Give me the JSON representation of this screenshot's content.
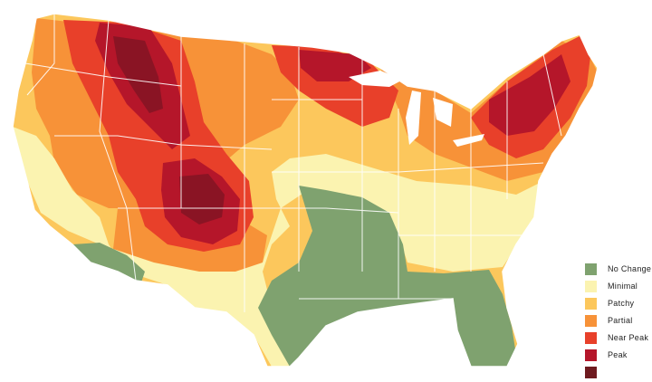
{
  "legend": {
    "items": [
      {
        "label": "No Change",
        "color": "#7fa26f"
      },
      {
        "label": "Minimal",
        "color": "#fbf3b0"
      },
      {
        "label": "Patchy",
        "color": "#fcc75c"
      },
      {
        "label": "Partial",
        "color": "#f79238"
      },
      {
        "label": "Near Peak",
        "color": "#e8402a"
      },
      {
        "label": "Peak",
        "color": "#b5162a"
      },
      {
        "label": "",
        "color": "#6e1a1f"
      }
    ]
  },
  "map": {
    "subject": "contiguous-united-states",
    "border_color": "#ffffff"
  }
}
